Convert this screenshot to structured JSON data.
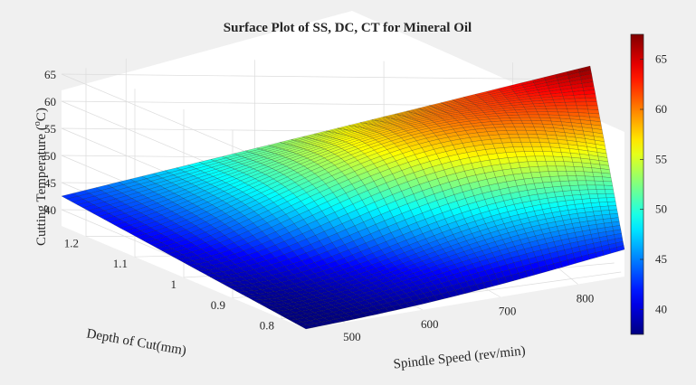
{
  "chart_data": {
    "type": "surface",
    "title": "Surface Plot of SS, DC, CT for Mineral Oil",
    "xlabel": "Spindle Speed (rev/min)",
    "ylabel": "Depth of Cut(mm)",
    "zlabel_main": "Cutting Temperature (",
    "zlabel_sup": "o",
    "zlabel_end": "C)",
    "x_range": [
      450,
      860
    ],
    "y_range": [
      0.75,
      1.25
    ],
    "z_range": [
      37,
      68
    ],
    "x_ticks": [
      "500",
      "600",
      "700",
      "800"
    ],
    "y_ticks": [
      "0.8",
      "0.9",
      "1",
      "1.1",
      "1.2"
    ],
    "z_ticks": [
      "40",
      "45",
      "50",
      "55",
      "60",
      "65"
    ],
    "colorbar": {
      "colormap": "jet",
      "range": [
        37.5,
        67.5
      ],
      "ticks": [
        "40",
        "45",
        "50",
        "55",
        "60",
        "65"
      ]
    },
    "corner_values": [
      {
        "spindle_speed": 450,
        "depth_of_cut": 1.25,
        "temperature": 42.5
      },
      {
        "spindle_speed": 860,
        "depth_of_cut": 1.25,
        "temperature": 67.5
      },
      {
        "spindle_speed": 450,
        "depth_of_cut": 0.75,
        "temperature": 37.0
      },
      {
        "spindle_speed": 860,
        "depth_of_cut": 0.75,
        "temperature": 42.0
      }
    ],
    "grid": true
  }
}
